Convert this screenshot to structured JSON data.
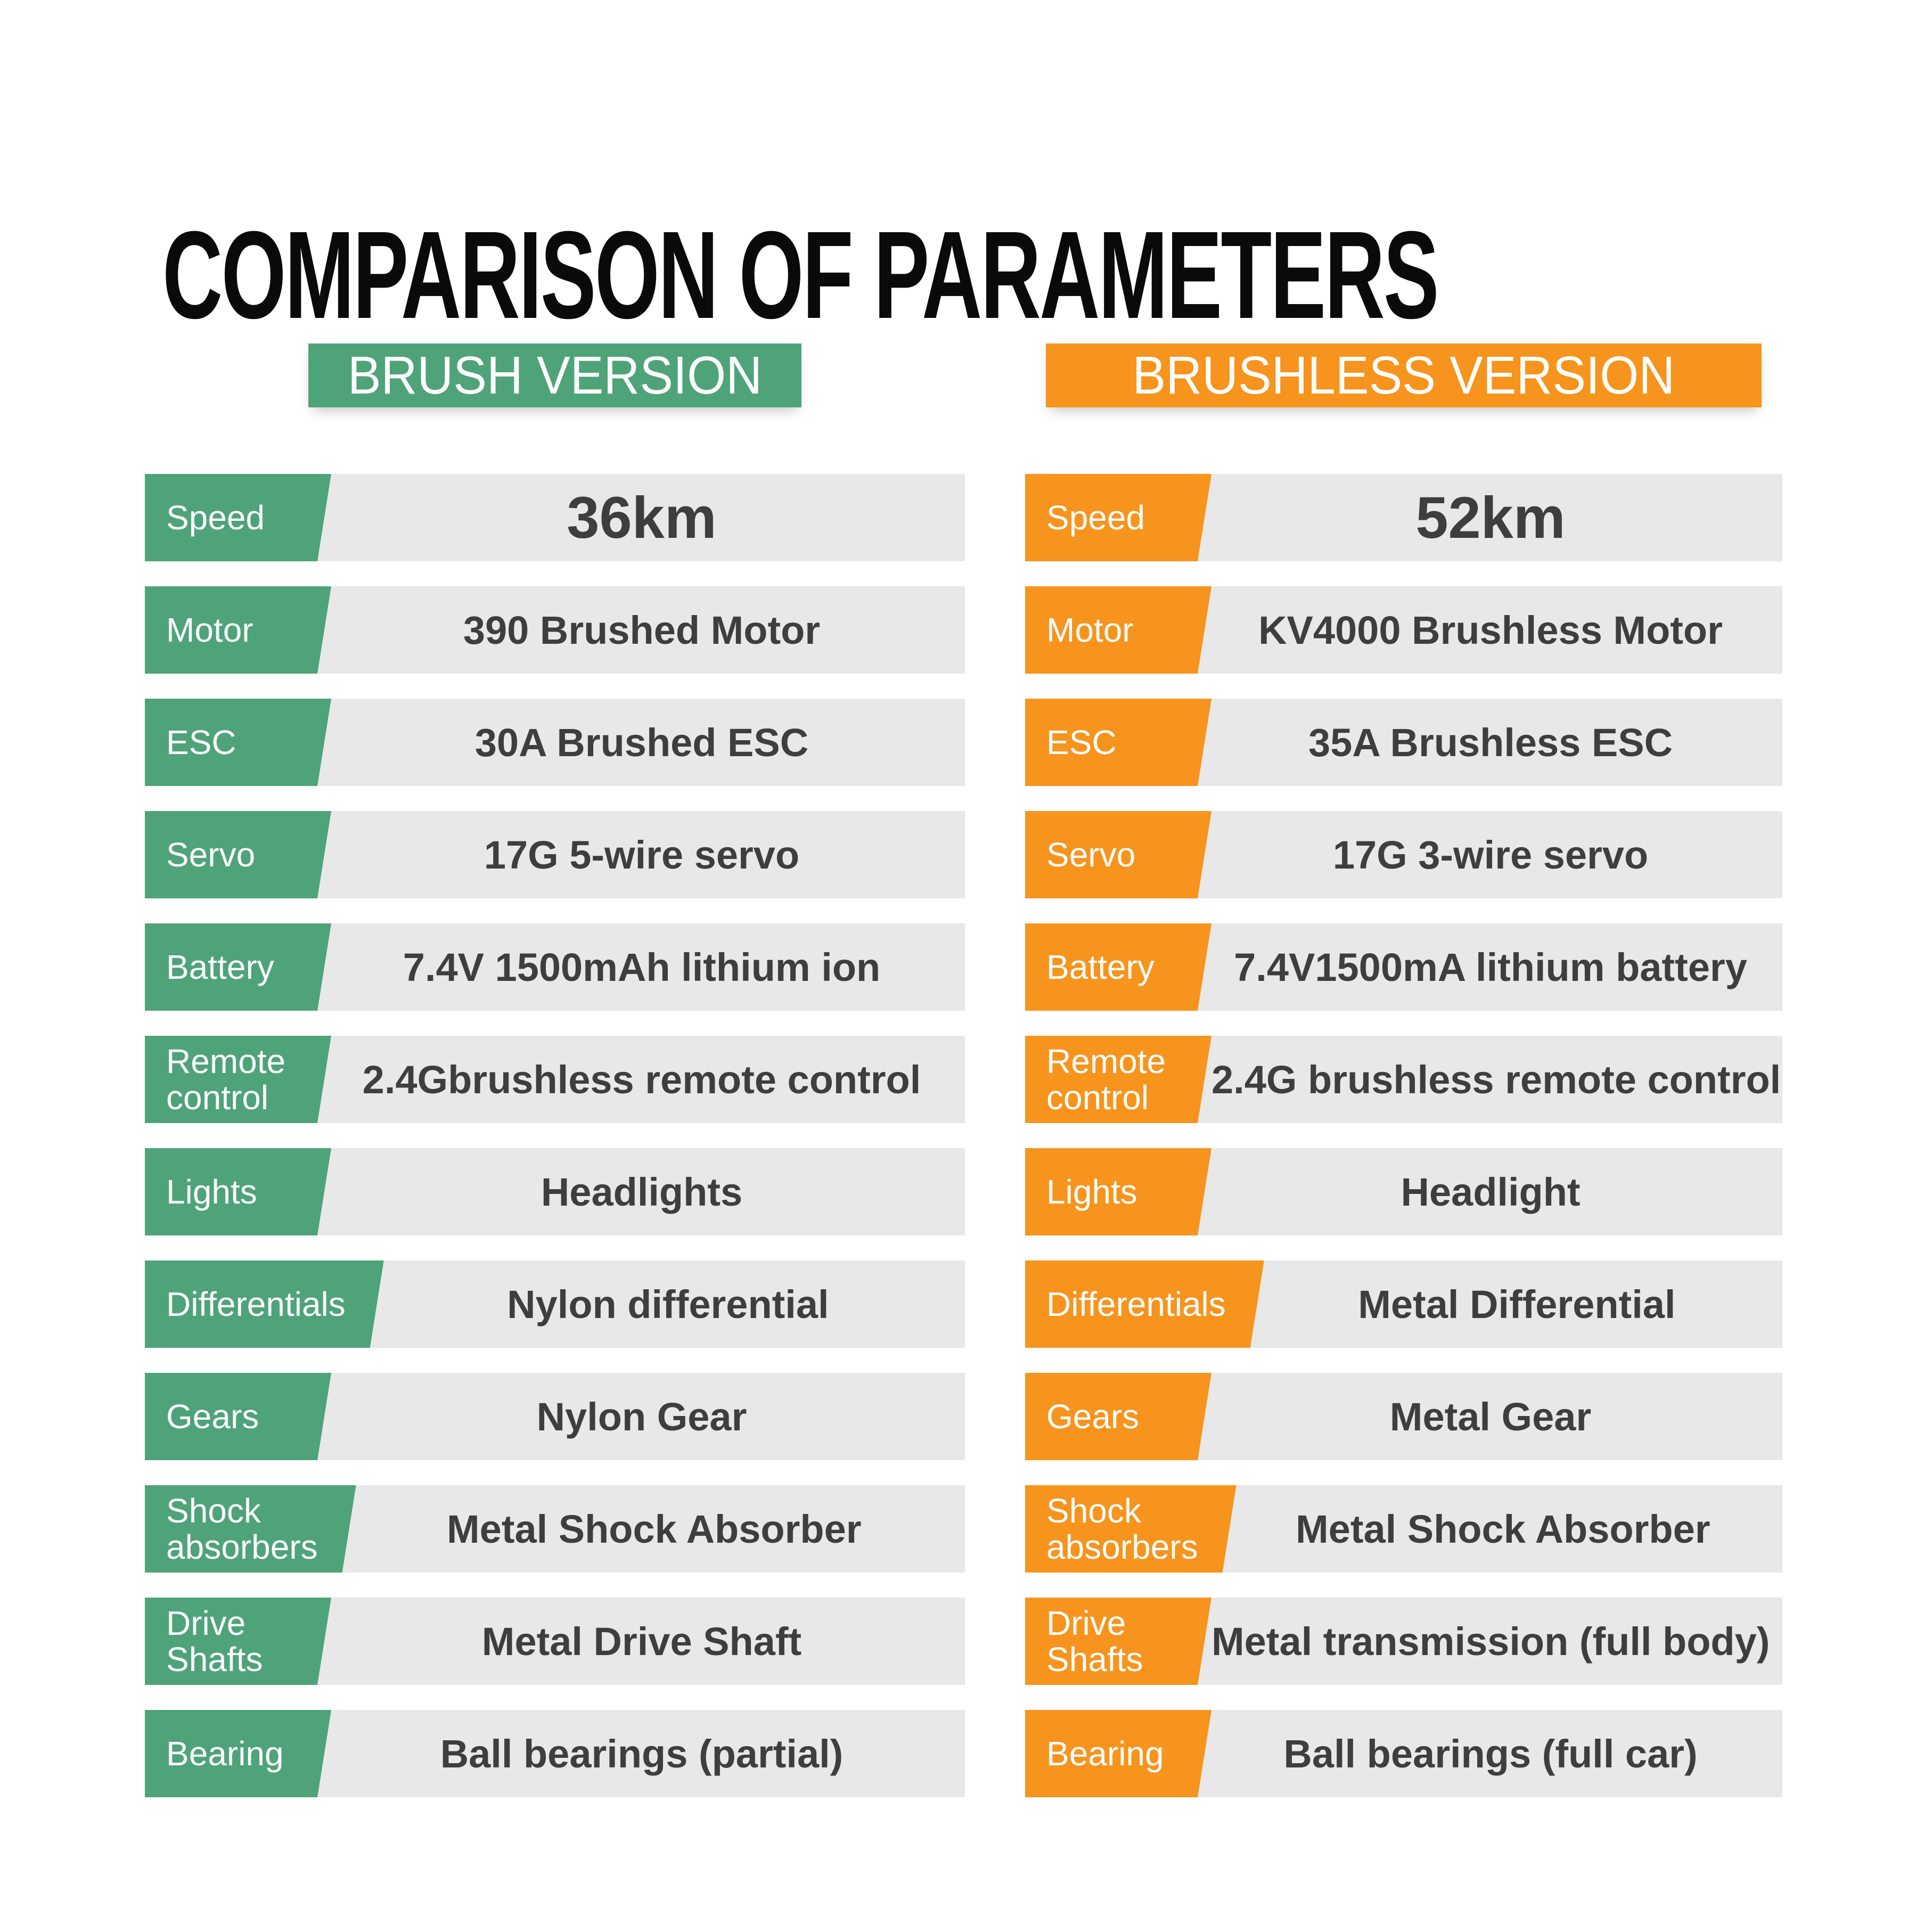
{
  "title": "COMPARISON OF PARAMETERS",
  "colors": {
    "brush_accent": "#4fa379",
    "brushless_accent": "#f7941d",
    "row_background": "#e8e8e8",
    "value_text": "#3e3e3e"
  },
  "columns": [
    {
      "id": "brush",
      "header": "BRUSH VERSION",
      "accent_color": "#4fa379",
      "rows": [
        {
          "label": "Speed",
          "label_lines": [
            "Speed"
          ],
          "value": "36km"
        },
        {
          "label": "Motor",
          "label_lines": [
            "Motor"
          ],
          "value": "390 Brushed Motor"
        },
        {
          "label": "ESC",
          "label_lines": [
            "ESC"
          ],
          "value": "30A Brushed ESC"
        },
        {
          "label": "Servo",
          "label_lines": [
            "Servo"
          ],
          "value": "17G 5-wire servo"
        },
        {
          "label": "Battery",
          "label_lines": [
            "Battery"
          ],
          "value": "7.4V 1500mAh lithium ion"
        },
        {
          "label": "Remote control",
          "label_lines": [
            "Remote",
            "control"
          ],
          "value": "2.4Gbrushless remote control"
        },
        {
          "label": "Lights",
          "label_lines": [
            "Lights"
          ],
          "value": "Headlights"
        },
        {
          "label": "Differentials",
          "label_lines": [
            "Differentials"
          ],
          "value": "Nylon differential"
        },
        {
          "label": "Gears",
          "label_lines": [
            "Gears"
          ],
          "value": "Nylon Gear"
        },
        {
          "label": "Shock absorbers",
          "label_lines": [
            "Shock",
            "absorbers"
          ],
          "value": "Metal Shock Absorber"
        },
        {
          "label": "Drive Shafts",
          "label_lines": [
            "Drive",
            "Shafts"
          ],
          "value": "Metal Drive Shaft"
        },
        {
          "label": "Bearing",
          "label_lines": [
            "Bearing"
          ],
          "value": "Ball bearings (partial)"
        }
      ]
    },
    {
      "id": "brushless",
      "header": "BRUSHLESS VERSION",
      "accent_color": "#f7941d",
      "rows": [
        {
          "label": "Speed",
          "label_lines": [
            "Speed"
          ],
          "value": "52km"
        },
        {
          "label": "Motor",
          "label_lines": [
            "Motor"
          ],
          "value": "KV4000 Brushless Motor"
        },
        {
          "label": "ESC",
          "label_lines": [
            "ESC"
          ],
          "value": "35A Brushless ESC"
        },
        {
          "label": "Servo",
          "label_lines": [
            "Servo"
          ],
          "value": "17G 3-wire servo"
        },
        {
          "label": "Battery",
          "label_lines": [
            "Battery"
          ],
          "value": "7.4V1500mA lithium battery"
        },
        {
          "label": "Remote control",
          "label_lines": [
            "Remote",
            "control"
          ],
          "value": "2.4G brushless remote control"
        },
        {
          "label": "Lights",
          "label_lines": [
            "Lights"
          ],
          "value": "Headlight"
        },
        {
          "label": "Differentials",
          "label_lines": [
            "Differentials"
          ],
          "value": "Metal Differential"
        },
        {
          "label": "Gears",
          "label_lines": [
            "Gears"
          ],
          "value": "Metal Gear"
        },
        {
          "label": "Shock absorbers",
          "label_lines": [
            "Shock",
            "absorbers"
          ],
          "value": "Metal Shock Absorber"
        },
        {
          "label": "Drive Shafts",
          "label_lines": [
            "Drive",
            "Shafts"
          ],
          "value": "Metal transmission (full body)"
        },
        {
          "label": "Bearing",
          "label_lines": [
            "Bearing"
          ],
          "value": "Ball bearings (full car)"
        }
      ]
    }
  ]
}
